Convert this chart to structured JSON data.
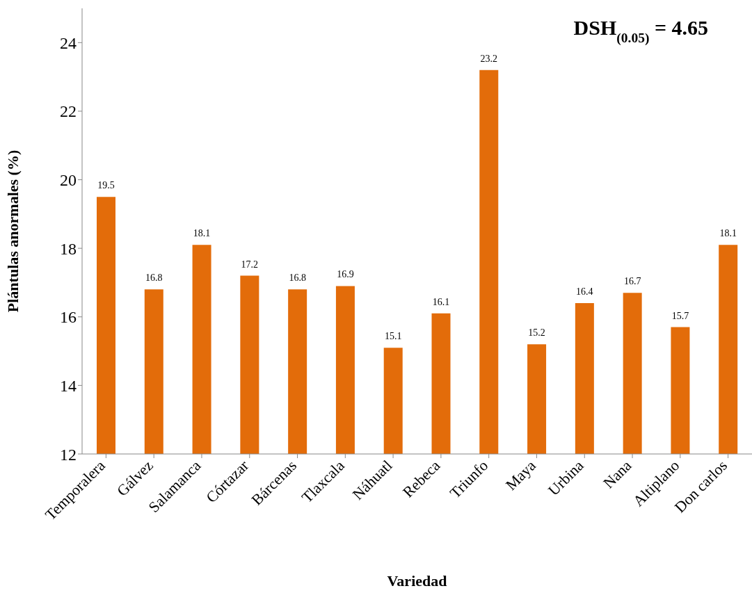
{
  "chart_data": {
    "type": "bar",
    "xlabel": "Variedad",
    "ylabel": "Plántulas anormales (%)",
    "categories": [
      "Temporalera",
      "Gálvez",
      "Salamanca",
      "Córtazar",
      "Bárcenas",
      "Tlaxcala",
      "Náhuatl",
      "Rebeca",
      "Triunfo",
      "Maya",
      "Urbina",
      "Nana",
      "Altiplano",
      "Don carlos"
    ],
    "values": [
      19.5,
      16.8,
      18.1,
      17.2,
      16.8,
      16.9,
      15.1,
      16.1,
      23.2,
      15.2,
      16.4,
      16.7,
      15.7,
      18.1
    ],
    "color": "#e36c0a",
    "ylim": [
      12,
      25
    ],
    "yticks": [
      12,
      14,
      16,
      18,
      20,
      22,
      24
    ],
    "grid": false,
    "data_labels": true,
    "legend": false,
    "annotations": [
      "DSH$_{(0.05)}$ = 4.65"
    ]
  }
}
